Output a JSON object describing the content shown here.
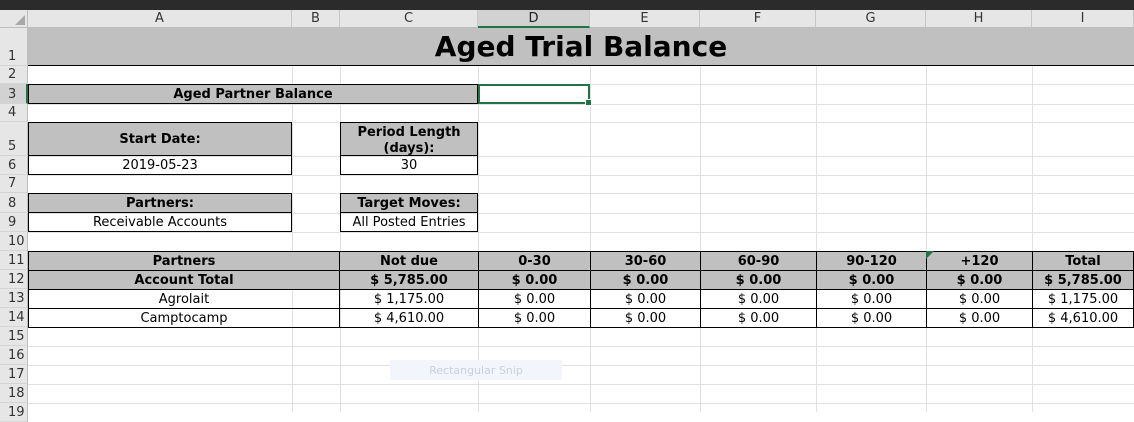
{
  "columns": [
    "A",
    "B",
    "C",
    "D",
    "E",
    "F",
    "G",
    "H",
    "I"
  ],
  "rows": [
    "1",
    "2",
    "3",
    "4",
    "5",
    "6",
    "7",
    "8",
    "9",
    "10",
    "11",
    "12",
    "13",
    "14",
    "15",
    "16",
    "17",
    "18",
    "19"
  ],
  "title": "Aged Trial Balance",
  "report_name": "Aged Partner Balance",
  "start_date_label": "Start Date:",
  "start_date_value": "2019-05-23",
  "period_length_label": "Period Length (days):",
  "period_length_value": "30",
  "partners_label": "Partners:",
  "partners_value": "Receivable Accounts",
  "target_moves_label": "Target Moves:",
  "target_moves_value": "All Posted Entries",
  "table": {
    "headers": [
      "Partners",
      "Not due",
      "0-30",
      "30-60",
      "60-90",
      "90-120",
      "+120",
      "Total"
    ],
    "total_row": {
      "label": "Account Total",
      "values": [
        [
          "$",
          "5,785.00"
        ],
        [
          "$",
          "0.00"
        ],
        [
          "$",
          "0.00"
        ],
        [
          "$",
          "0.00"
        ],
        [
          "$",
          "0.00"
        ],
        [
          "$",
          "0.00"
        ],
        [
          "$",
          "5,785.00"
        ]
      ]
    },
    "rows": [
      {
        "label": "Agrolait",
        "values": [
          [
            "$",
            "1,175.00"
          ],
          [
            "$",
            "0.00"
          ],
          [
            "$",
            "0.00"
          ],
          [
            "$",
            "0.00"
          ],
          [
            "$",
            "0.00"
          ],
          [
            "$",
            "0.00"
          ],
          [
            "$",
            "1,175.00"
          ]
        ]
      },
      {
        "label": "Camptocamp",
        "values": [
          [
            "$",
            "4,610.00"
          ],
          [
            "$",
            "0.00"
          ],
          [
            "$",
            "0.00"
          ],
          [
            "$",
            "0.00"
          ],
          [
            "$",
            "0.00"
          ],
          [
            "$",
            "0.00"
          ],
          [
            "$",
            "4,610.00"
          ]
        ]
      }
    ]
  },
  "snip_overlay": "Rectangular Snip",
  "accent_color": "#217346"
}
